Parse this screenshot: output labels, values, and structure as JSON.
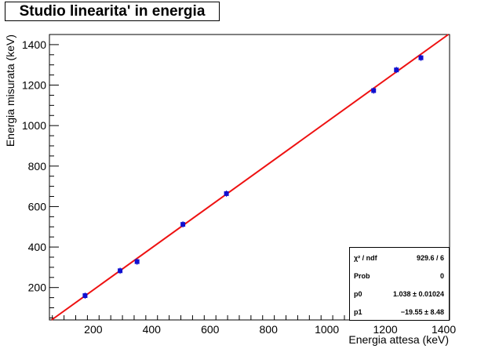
{
  "title": "Studio linearita' in energia",
  "stats": {
    "rows": [
      {
        "key": "χ² / ndf",
        "value": "929.6 / 6"
      },
      {
        "key": "Prob",
        "value": "0"
      },
      {
        "key": "p0",
        "value": "1.038  ± 0.01024"
      },
      {
        "key": "p1",
        "value": "−19.55  ±  8.48"
      }
    ]
  },
  "colors": {
    "points": "#1010d0",
    "fit": "#ee1111",
    "axis": "#000000"
  },
  "chart_data": {
    "type": "scatter",
    "title": "Studio linearita' in energia",
    "xlabel": "Energia attesa (keV)",
    "ylabel": "Energia misurata (keV)",
    "xlim": [
      50,
      1420
    ],
    "ylim": [
      40,
      1450
    ],
    "x_ticks": [
      200,
      400,
      600,
      800,
      1000,
      1200,
      1400
    ],
    "y_ticks": [
      200,
      400,
      600,
      800,
      1000,
      1200,
      1400
    ],
    "grid": false,
    "points": [
      {
        "x": 172,
        "y": 160
      },
      {
        "x": 292,
        "y": 283
      },
      {
        "x": 350,
        "y": 328
      },
      {
        "x": 507,
        "y": 512
      },
      {
        "x": 656,
        "y": 664
      },
      {
        "x": 1160,
        "y": 1173
      },
      {
        "x": 1238,
        "y": 1275
      },
      {
        "x": 1322,
        "y": 1335
      }
    ],
    "fit": {
      "slope": 1.038,
      "intercept": -19.55
    }
  }
}
